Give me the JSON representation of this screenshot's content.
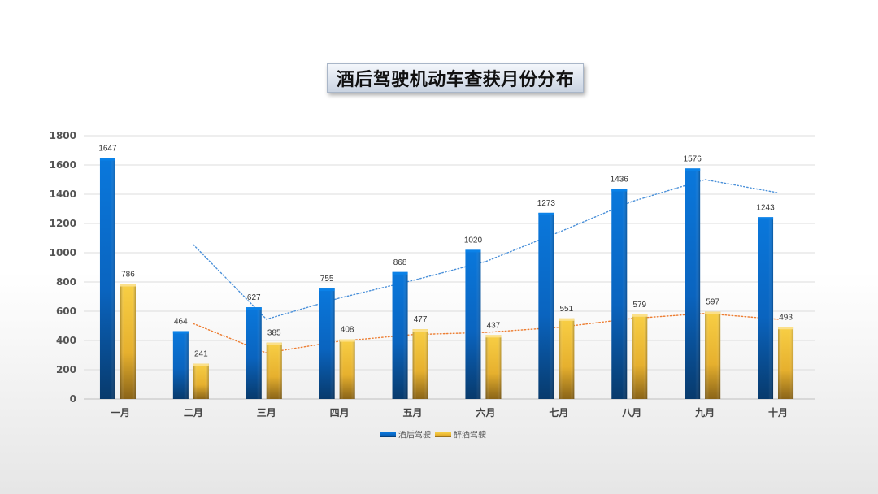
{
  "chart_data": {
    "type": "bar",
    "title": "酒后驾驶机动车查获月份分布",
    "categories": [
      "一月",
      "二月",
      "三月",
      "四月",
      "五月",
      "六月",
      "七月",
      "八月",
      "九月",
      "十月"
    ],
    "series": [
      {
        "name": "酒后驾驶",
        "values": [
          1647,
          464,
          627,
          755,
          868,
          1020,
          1273,
          1436,
          1576,
          1243
        ],
        "color": "#0a6fd0"
      },
      {
        "name": "醉酒驾驶",
        "values": [
          786,
          241,
          385,
          408,
          477,
          437,
          551,
          579,
          597,
          493
        ],
        "color": "#e8b838"
      }
    ],
    "trendlines": [
      {
        "series": "酒后驾驶",
        "style": "dotted",
        "color": "#4a90d9",
        "x": [
          "二月",
          "三月",
          "四月",
          "五月",
          "六月",
          "七月",
          "八月",
          "九月",
          "十月"
        ],
        "values": [
          1055,
          545,
          690,
          810,
          940,
          1140,
          1350,
          1500,
          1410
        ]
      },
      {
        "series": "醉酒驾驶",
        "style": "dotted",
        "color": "#ed7d31",
        "x": [
          "二月",
          "三月",
          "四月",
          "五月",
          "六月",
          "七月",
          "八月",
          "九月",
          "十月"
        ],
        "values": [
          515,
          315,
          395,
          440,
          455,
          490,
          550,
          585,
          545
        ]
      }
    ],
    "ylim": [
      0,
      1800
    ],
    "yticks": [
      0,
      200,
      400,
      600,
      800,
      1000,
      1200,
      1400,
      1600,
      1800
    ],
    "grid": true,
    "legend": "bottom-center",
    "data_labels": true
  }
}
